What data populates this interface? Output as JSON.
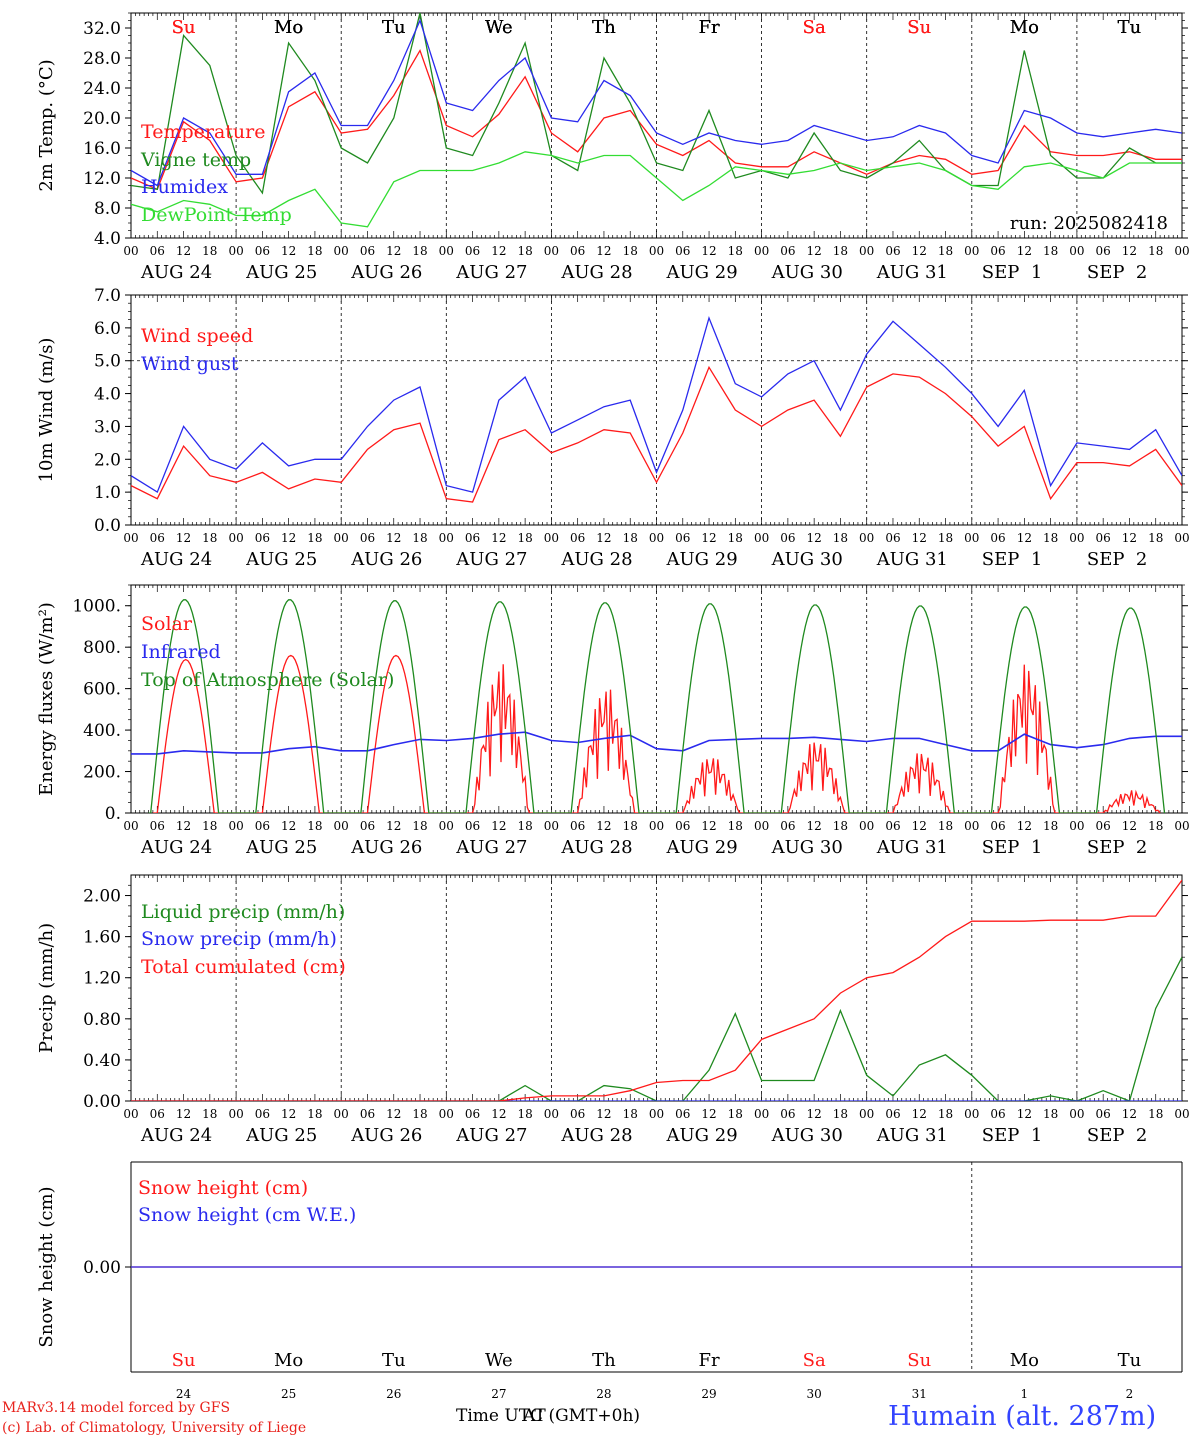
{
  "colors": {
    "red": "#ff1a1a",
    "dark_green": "#1f8a1f",
    "light_green": "#33dd33",
    "blue": "#2a2aee",
    "title_blue": "#3344ff",
    "black": "#000000"
  },
  "weekday_labels": [
    "Su",
    "Mo",
    "Tu",
    "We",
    "Th",
    "Fr",
    "Sa",
    "Su",
    "Mo",
    "Tu"
  ],
  "weekday_colors": [
    "red",
    "black",
    "black",
    "black",
    "black",
    "black",
    "red",
    "red",
    "black",
    "black"
  ],
  "day_labels": [
    "AUG 24",
    "AUG 25",
    "AUG 26",
    "AUG 27",
    "AUG 28",
    "AUG 29",
    "AUG 30",
    "AUG 31",
    "SEP  1",
    "SEP  2"
  ],
  "bottom_day_numbers": [
    "24",
    "25",
    "26",
    "27",
    "28",
    "29",
    "30",
    "31",
    "1",
    "2"
  ],
  "hour_ticks": [
    "00",
    "06",
    "12",
    "18"
  ],
  "footer": {
    "model": "MARv3.14 model forced by GFS",
    "lab": "(c) Lab. of Climatology, University of Liege",
    "time_label": "Time UTC (GMT+0h)",
    "time_overlap": "AT",
    "station": "Humain (alt. 287m)"
  },
  "chart_data": [
    {
      "type": "line",
      "ylabel": "2m Temp. (°C)",
      "yticks": [
        "32.0",
        "28.0",
        "24.0",
        "20.0",
        "16.0",
        "12.0",
        "8.0",
        "4.0"
      ],
      "ylim": [
        4,
        34
      ],
      "run_label": "run: 2025082418",
      "x_hours": [
        0,
        6,
        12,
        18,
        24,
        30,
        36,
        42,
        48,
        54,
        60,
        66,
        72,
        78,
        84,
        90,
        96,
        102,
        108,
        114,
        120,
        126,
        132,
        138,
        144,
        150,
        156,
        162,
        168,
        174,
        180,
        186,
        192,
        198,
        204,
        210,
        216,
        222,
        228,
        234,
        240
      ],
      "series": [
        {
          "name": "Temperature",
          "color": "red",
          "values": [
            12,
            10.5,
            19.5,
            17,
            11.5,
            12,
            21.5,
            23.5,
            18,
            18.5,
            23,
            29,
            19,
            17.5,
            20.5,
            25.5,
            18,
            15.5,
            20,
            21,
            16.5,
            15,
            17,
            14,
            13.5,
            13.5,
            15.5,
            14,
            12.5,
            14,
            15,
            14.5,
            12.5,
            13,
            19,
            15.5,
            15,
            15,
            15.5,
            14.5,
            14.5
          ]
        },
        {
          "name": "Vigne temp",
          "color": "dark_green",
          "values": [
            11,
            10.5,
            31,
            27,
            15,
            10,
            30,
            25,
            16,
            14,
            20,
            34,
            16,
            15,
            22,
            30,
            15,
            13,
            28,
            22,
            14,
            13,
            21,
            12,
            13,
            12,
            18,
            13,
            12,
            14,
            17,
            13,
            11,
            11,
            29,
            15,
            12,
            12,
            16,
            14,
            14
          ]
        },
        {
          "name": "Humidex",
          "color": "blue",
          "values": [
            13,
            11,
            20,
            18,
            12.5,
            12.5,
            23.5,
            26,
            19,
            19,
            25,
            33,
            22,
            21,
            25,
            28,
            20,
            19.5,
            25,
            23,
            18,
            16.5,
            18,
            17,
            16.5,
            17,
            19,
            18,
            17,
            17.5,
            19,
            18,
            15,
            14,
            21,
            20,
            18,
            17.5,
            18,
            18.5,
            18
          ]
        },
        {
          "name": "DewPoint Temp",
          "color": "light_green",
          "values": [
            8.5,
            7.5,
            9,
            8.5,
            7,
            7,
            9,
            10.5,
            6,
            5.5,
            11.5,
            13,
            13,
            13,
            14,
            15.5,
            15,
            14,
            15,
            15,
            12,
            9,
            11,
            13.5,
            13,
            12.5,
            13,
            14,
            13,
            13.5,
            14,
            13,
            11,
            10.5,
            13.5,
            14,
            13,
            12,
            14,
            14,
            14
          ]
        }
      ]
    },
    {
      "type": "line",
      "ylabel": "10m Wind (m/s)",
      "yticks": [
        "7.0",
        "6.0",
        "5.0",
        "4.0",
        "3.0",
        "2.0",
        "1.0",
        "0.0"
      ],
      "ylim": [
        0,
        7
      ],
      "reference_line": 5.0,
      "x_hours": [
        0,
        6,
        12,
        18,
        24,
        30,
        36,
        42,
        48,
        54,
        60,
        66,
        72,
        78,
        84,
        90,
        96,
        102,
        108,
        114,
        120,
        126,
        132,
        138,
        144,
        150,
        156,
        162,
        168,
        174,
        180,
        186,
        192,
        198,
        204,
        210,
        216,
        222,
        228,
        234,
        240
      ],
      "series": [
        {
          "name": "Wind speed",
          "color": "red",
          "values": [
            1.2,
            0.8,
            2.4,
            1.5,
            1.3,
            1.6,
            1.1,
            1.4,
            1.3,
            2.3,
            2.9,
            3.1,
            0.8,
            0.7,
            2.6,
            2.9,
            2.2,
            2.5,
            2.9,
            2.8,
            1.3,
            2.8,
            4.8,
            3.5,
            3.0,
            3.5,
            3.8,
            2.7,
            4.2,
            4.6,
            4.5,
            4.0,
            3.3,
            2.4,
            3.0,
            0.8,
            1.9,
            1.9,
            1.8,
            2.3,
            1.2
          ]
        },
        {
          "name": "Wind gust",
          "color": "blue",
          "values": [
            1.5,
            1.0,
            3.0,
            2.0,
            1.7,
            2.5,
            1.8,
            2.0,
            2.0,
            3.0,
            3.8,
            4.2,
            1.2,
            1.0,
            3.8,
            4.5,
            2.8,
            3.2,
            3.6,
            3.8,
            1.6,
            3.5,
            6.3,
            4.3,
            3.9,
            4.6,
            5.0,
            3.5,
            5.2,
            6.2,
            5.5,
            4.8,
            4.0,
            3.0,
            4.1,
            1.2,
            2.5,
            2.4,
            2.3,
            2.9,
            1.5
          ]
        }
      ]
    },
    {
      "type": "line",
      "ylabel": "Energy fluxes (W/m²)",
      "yticks": [
        "1000.",
        "800.",
        "600.",
        "400.",
        "200.",
        "0."
      ],
      "ylim": [
        0,
        1100
      ],
      "series": [
        {
          "name": "Solar",
          "color": "red",
          "peaks": [
            740,
            760,
            760,
            730,
            620,
            280,
            360,
            300,
            730,
            110
          ]
        },
        {
          "name": "Infrared",
          "color": "blue",
          "x_hours": [
            0,
            6,
            12,
            18,
            24,
            30,
            36,
            42,
            48,
            54,
            60,
            66,
            72,
            78,
            84,
            90,
            96,
            102,
            108,
            114,
            120,
            126,
            132,
            138,
            144,
            150,
            156,
            162,
            168,
            174,
            180,
            186,
            192,
            198,
            204,
            210,
            216,
            222,
            228,
            234,
            240
          ],
          "values": [
            285,
            285,
            300,
            295,
            290,
            290,
            310,
            320,
            300,
            300,
            330,
            355,
            350,
            360,
            380,
            390,
            350,
            340,
            360,
            375,
            310,
            300,
            350,
            355,
            360,
            360,
            365,
            355,
            345,
            360,
            360,
            330,
            300,
            300,
            380,
            330,
            315,
            330,
            360,
            370,
            370
          ]
        },
        {
          "name": "Top of Atmosphere (Solar)",
          "color": "dark_green",
          "peaks": [
            1030,
            1030,
            1025,
            1020,
            1015,
            1010,
            1005,
            1000,
            995,
            990
          ]
        }
      ]
    },
    {
      "type": "line",
      "ylabel": "Precip (mm/h)",
      "yticks": [
        "2.00",
        "1.60",
        "1.20",
        "0.80",
        "0.40",
        "0.00"
      ],
      "ylim": [
        0,
        2.2
      ],
      "x_hours": [
        0,
        6,
        12,
        18,
        24,
        30,
        36,
        42,
        48,
        54,
        60,
        66,
        72,
        78,
        84,
        90,
        96,
        102,
        108,
        114,
        120,
        126,
        132,
        138,
        144,
        150,
        156,
        162,
        168,
        174,
        180,
        186,
        192,
        198,
        204,
        210,
        216,
        222,
        228,
        234,
        240
      ],
      "series": [
        {
          "name": "Liquid precip (mm/h)",
          "color": "dark_green",
          "values": [
            0,
            0,
            0,
            0,
            0,
            0,
            0,
            0,
            0,
            0,
            0,
            0,
            0,
            0,
            0,
            0.15,
            0,
            0,
            0.15,
            0.12,
            0,
            0,
            0.3,
            0.85,
            0.2,
            0.2,
            0.2,
            0.88,
            0.25,
            0.05,
            0.35,
            0.45,
            0.25,
            0,
            0,
            0.05,
            0,
            0.1,
            0,
            0.9,
            1.4
          ]
        },
        {
          "name": "Snow precip (mm/h)",
          "color": "blue",
          "values": [
            0,
            0,
            0,
            0,
            0,
            0,
            0,
            0,
            0,
            0,
            0,
            0,
            0,
            0,
            0,
            0,
            0,
            0,
            0,
            0,
            0,
            0,
            0,
            0,
            0,
            0,
            0,
            0,
            0,
            0,
            0,
            0,
            0,
            0,
            0,
            0,
            0,
            0,
            0,
            0,
            0
          ]
        },
        {
          "name": "Total cumulated (cm)",
          "color": "red",
          "values": [
            0,
            0,
            0,
            0,
            0,
            0,
            0,
            0,
            0,
            0,
            0,
            0,
            0,
            0,
            0,
            0.03,
            0.05,
            0.05,
            0.05,
            0.1,
            0.18,
            0.2,
            0.2,
            0.3,
            0.6,
            0.7,
            0.8,
            1.05,
            1.2,
            1.25,
            1.4,
            1.6,
            1.75,
            1.75,
            1.75,
            1.76,
            1.76,
            1.76,
            1.8,
            1.8,
            2.15
          ]
        }
      ]
    },
    {
      "type": "line",
      "ylabel": "Snow height (cm)",
      "yticks": [
        "0.00"
      ],
      "series": [
        {
          "name": "Snow height (cm)",
          "color": "red",
          "values": [
            0,
            0
          ]
        },
        {
          "name": "Snow height (cm W.E.)",
          "color": "blue",
          "values": [
            0,
            0
          ]
        }
      ]
    }
  ]
}
